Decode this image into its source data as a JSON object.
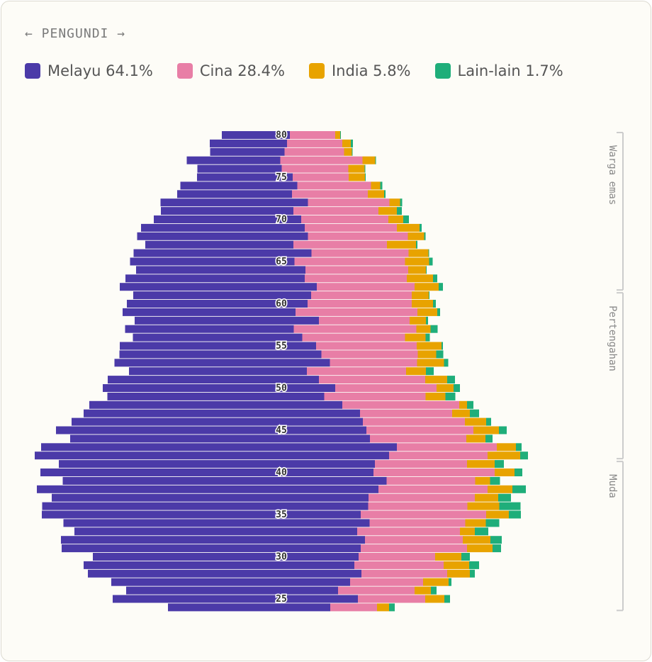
{
  "chart_data": {
    "type": "pyramid",
    "title": "← PENGUNDI →",
    "categories": [
      "80",
      null,
      null,
      null,
      null,
      "75",
      null,
      null,
      null,
      null,
      "70",
      null,
      null,
      null,
      null,
      "65",
      null,
      null,
      null,
      null,
      "60",
      null,
      null,
      null,
      null,
      "55",
      null,
      null,
      null,
      null,
      "50",
      null,
      null,
      null,
      null,
      "45",
      null,
      null,
      null,
      null,
      "40",
      null,
      null,
      null,
      null,
      "35",
      null,
      null,
      null,
      null,
      "30",
      null,
      null,
      null,
      null,
      "25",
      null
    ],
    "series": [
      {
        "name": "Melayu 64.1%",
        "color": "#4b3aa8",
        "values": [
          96,
          109,
          105,
          132,
          119,
          135,
          165,
          162,
          208,
          187,
          208,
          231,
          241,
          209,
          251,
          232,
          239,
          253,
          278,
          251,
          255,
          244,
          260,
          238,
          239,
          277,
          285,
          304,
          251,
          298,
          328,
          306,
          357,
          390,
          411,
          438,
          423,
          502,
          500,
          446,
          470,
          457,
          482,
          447,
          460,
          450,
          432,
          399,
          429,
          422,
          375,
          382,
          386,
          337,
          299,
          346,
          229
        ]
      },
      {
        "name": "Cina 28.4%",
        "color": "#e87ea6",
        "values": [
          64,
          78,
          84,
          116,
          94,
          79,
          104,
          107,
          115,
          120,
          123,
          130,
          141,
          132,
          137,
          156,
          145,
          144,
          138,
          142,
          147,
          172,
          128,
          173,
          145,
          142,
          136,
          123,
          140,
          150,
          143,
          143,
          165,
          130,
          144,
          151,
          136,
          141,
          139,
          130,
          171,
          125,
          154,
          150,
          140,
          177,
          135,
          145,
          138,
          150,
          108,
          126,
          121,
          103,
          108,
          95,
          66
        ]
      },
      {
        "name": "India 5.8%",
        "color": "#e8a300",
        "values": [
          7,
          12,
          11,
          18,
          23,
          23,
          13,
          23,
          15,
          26,
          21,
          32,
          23,
          41,
          28,
          34,
          25,
          37,
          34,
          24,
          30,
          28,
          23,
          20,
          29,
          35,
          26,
          38,
          28,
          31,
          24,
          28,
          11,
          25,
          30,
          36,
          27,
          27,
          46,
          39,
          28,
          21,
          35,
          33,
          45,
          32,
          29,
          21,
          39,
          36,
          37,
          36,
          32,
          36,
          23,
          27,
          17
        ]
      },
      {
        "name": "Lain-lain 1.7%",
        "color": "#1fae7a",
        "values": [
          1,
          3,
          1,
          1,
          1,
          1,
          3,
          2,
          3,
          7,
          8,
          3,
          2,
          2,
          1,
          5,
          1,
          6,
          6,
          1,
          4,
          4,
          3,
          10,
          6,
          2,
          10,
          6,
          11,
          11,
          9,
          14,
          9,
          13,
          7,
          11,
          10,
          8,
          11,
          13,
          11,
          14,
          19,
          18,
          30,
          17,
          19,
          19,
          16,
          12,
          12,
          14,
          7,
          4,
          8,
          8,
          8
        ]
      }
    ],
    "groups": [
      {
        "label": "Warga emas",
        "from": "80",
        "to": "62"
      },
      {
        "label": "Pertengahan",
        "from": "61",
        "to": "42"
      },
      {
        "label": "Muda",
        "from": "41",
        "to": "24"
      }
    ]
  }
}
